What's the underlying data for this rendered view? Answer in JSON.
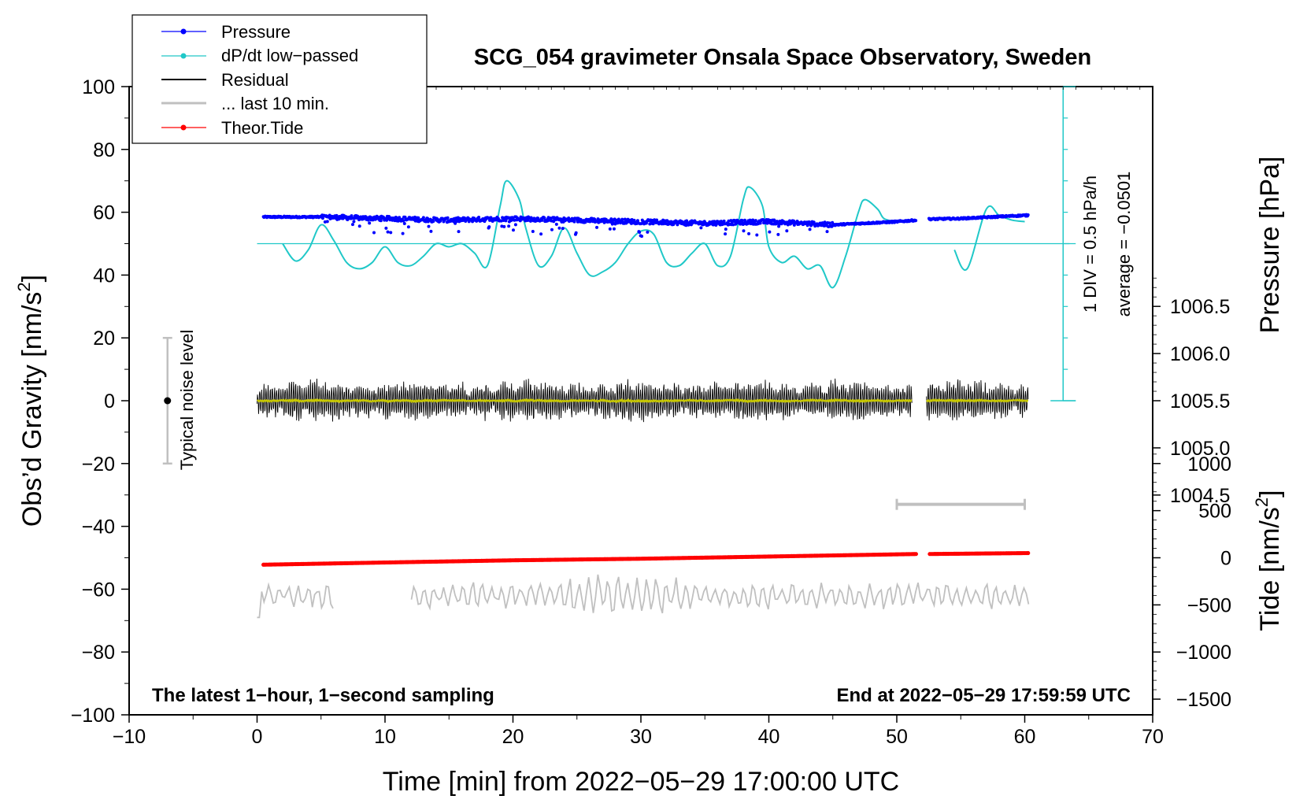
{
  "chart_data": {
    "type": "line",
    "title": "SCG_054 gravimeter Onsala Space Observatory, Sweden",
    "xlabel": "Time [min] from 2022−05−29 17:00:00 UTC",
    "ylabel_left_main": "Obs’d Gravity [nm/s",
    "ylabel_left_sup": "2",
    "ylabel_left_end": "]",
    "ylabel_right_top": "Pressure [hPa]",
    "ylabel_right_bottom_main": "Tide [nm/s",
    "ylabel_right_bottom_sup": "2",
    "ylabel_right_bottom_end": "]",
    "xlim": [
      -10,
      70
    ],
    "ylim": [
      -100,
      100
    ],
    "x_ticks": [
      -10,
      0,
      10,
      20,
      30,
      40,
      50,
      60,
      70
    ],
    "x_tick_labels": [
      "−10",
      "0",
      "10",
      "20",
      "30",
      "40",
      "50",
      "60",
      "70"
    ],
    "y_ticks": [
      100,
      80,
      60,
      40,
      20,
      0,
      -20,
      -40,
      -60,
      -80,
      -100
    ],
    "y_tick_labels": [
      "100",
      "80",
      "60",
      "40",
      "20",
      "0",
      "−20",
      "−40",
      "−60",
      "−80",
      "−100"
    ],
    "pressure_axis": {
      "values": [
        1006.5,
        1006.0,
        1005.5,
        1005.0,
        1004.5
      ],
      "labels": [
        "1006.5",
        "1006.0",
        "1005.5",
        "1005.0",
        "1004.5"
      ],
      "zero_gravity_at": 1005.5,
      "hpa_per_nms2": 0.0333
    },
    "tide_axis": {
      "values": [
        1000,
        500,
        0,
        -500,
        -1000,
        -1500
      ],
      "labels": [
        "1000",
        "500",
        "0",
        "−500",
        "−1000",
        "−1500"
      ],
      "gravity_at_zero": -50,
      "nms2_per_gravity_unit": 33.33
    },
    "legend": [
      {
        "label": "Pressure",
        "color": "#0000ff",
        "marker": "dot"
      },
      {
        "label": "dP/dt low−passed",
        "color": "#20c8c8",
        "marker": "dot"
      },
      {
        "label": "Residual",
        "color": "#000000",
        "marker": "line"
      },
      {
        "label": "... last 10 min.",
        "color": "#c0c0c0",
        "marker": "line"
      },
      {
        "label": "Theor.Tide",
        "color": "#ff0000",
        "marker": "dot"
      }
    ],
    "series": [
      {
        "name": "Pressure",
        "color": "#0000ff",
        "gaps": [
          [
            51.5,
            52.5
          ]
        ],
        "x": [
          0.5,
          5,
          10,
          15,
          20,
          25,
          30,
          35,
          40,
          45,
          50,
          52.5,
          55,
          60
        ],
        "y": [
          58.5,
          58.5,
          58,
          57.5,
          58,
          57.5,
          57,
          56.5,
          57,
          56,
          57,
          57.8,
          58,
          59
        ]
      },
      {
        "name": "dP/dt low-passed",
        "color": "#20c8c8",
        "baseline": 50,
        "gaps": [
          [
            51.5,
            54.5
          ]
        ],
        "x": [
          2,
          3,
          4,
          5,
          6,
          7,
          8,
          9,
          10,
          11,
          12,
          13,
          14,
          15,
          16,
          17,
          18,
          19,
          19.5,
          20.5,
          21,
          22,
          23,
          24,
          25,
          26,
          27,
          28,
          29,
          30,
          31,
          32,
          33,
          34,
          35,
          36,
          37,
          38,
          38.5,
          39.5,
          40,
          41,
          42,
          43,
          44,
          45,
          46,
          47,
          47.5,
          48.5,
          49,
          50,
          51,
          54.5,
          55.5,
          57,
          58,
          59,
          60
        ],
        "y": [
          50,
          44.5,
          48,
          56,
          51,
          44,
          42,
          44,
          49,
          44,
          43,
          46,
          50,
          49,
          50,
          47,
          43,
          62,
          70,
          64,
          55,
          43,
          46,
          55,
          47,
          40,
          41,
          44,
          50,
          54,
          53,
          44,
          43,
          47,
          50,
          43,
          46,
          64,
          68,
          62,
          49,
          44,
          46,
          42,
          43,
          36,
          46,
          60,
          64,
          61,
          58,
          57,
          57,
          48,
          42,
          61,
          59,
          57.5,
          57
        ],
        "scale_label": "1 DIV = 0.5 hPa/h",
        "average_label": "average = −0.0501"
      },
      {
        "name": "Residual",
        "color": "#000000",
        "center": 0,
        "amplitude": 6,
        "gaps": [
          [
            51.2,
            52.3
          ]
        ],
        "x": [
          0,
          51.2,
          52.3,
          60.3
        ]
      },
      {
        "name": "... last 10 min.",
        "color": "#c0c0c0",
        "center": -62,
        "gaps": [
          [
            6,
            12
          ]
        ],
        "x": [
          0,
          6,
          12,
          60.3
        ]
      },
      {
        "name": "Theor.Tide",
        "color": "#ff0000",
        "gaps": [
          [
            51.5,
            52.5
          ]
        ],
        "x": [
          0.5,
          10,
          20,
          30,
          40,
          51.5,
          52.5,
          60.3
        ],
        "y": [
          -52.2,
          -51.5,
          -50.8,
          -50.3,
          -49.6,
          -48.8,
          -48.8,
          -48.5
        ]
      }
    ],
    "annotations": {
      "noise_label": "Typical noise level",
      "noise_x": -7,
      "noise_range": [
        -20,
        20
      ],
      "bottom_left": "The latest 1−hour, 1−second sampling",
      "bottom_right": "End at 2022−05−29 17:59:59 UTC",
      "last_window_bar": [
        50,
        60
      ],
      "last_window_y": -33
    }
  }
}
